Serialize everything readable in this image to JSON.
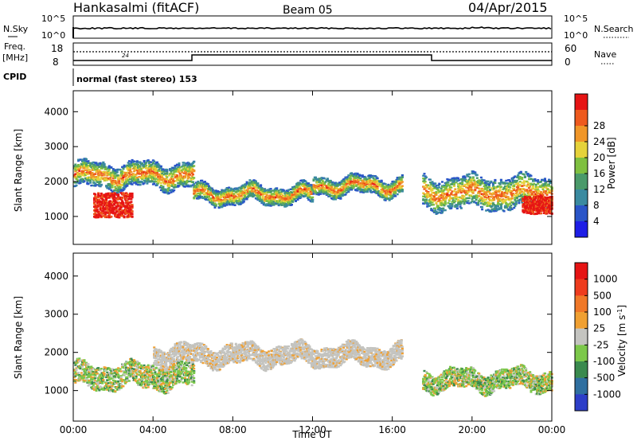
{
  "header": {
    "station": "Hankasalmi (fitACF)",
    "beam": "Beam 05",
    "date": "04/Apr/2015"
  },
  "noise_panel": {
    "left_label": "N.Sky",
    "right_label": "N.Search",
    "tick_high": "10^5",
    "tick_low": "10^0"
  },
  "freq_panel": {
    "left_label_line1": "Freq.",
    "left_label_line2": "[MHz]",
    "left_ticks": [
      "8",
      "18"
    ],
    "right_ticks": [
      "0",
      "60"
    ],
    "right_label": "Nave",
    "nave_annotation": "24"
  },
  "cpid": {
    "label": "CPID",
    "text": "normal (fast stereo) 153"
  },
  "chart_data": [
    {
      "type": "heatmap",
      "title": "",
      "ylabel": "Slant Range [km]",
      "ylim": [
        200,
        4600
      ],
      "yticks": [
        "1000",
        "2000",
        "3000",
        "4000"
      ],
      "xlim": [
        "00:00",
        "24:00"
      ],
      "colorbar": {
        "label": "Power [dB]",
        "ticks": [
          "4",
          "8",
          "12",
          "16",
          "20",
          "24",
          "28"
        ],
        "colors": [
          "#1e1ee6",
          "#2a55c8",
          "#3a8aa0",
          "#4a9a6a",
          "#7fc040",
          "#e6d23a",
          "#f09628",
          "#ee5a1e",
          "#e61414"
        ]
      },
      "echo_bands": [
        {
          "x_start": 0.0,
          "x_end": 6.0,
          "range_center": 2200,
          "range_width": 700,
          "dominant": "mixed"
        },
        {
          "x_start": 6.0,
          "x_end": 12.0,
          "range_center": 1650,
          "range_width": 500,
          "dominant": "orange"
        },
        {
          "x_start": 12.0,
          "x_end": 16.5,
          "range_center": 1900,
          "range_width": 500,
          "dominant": "yellow"
        },
        {
          "x_start": 17.5,
          "x_end": 24.0,
          "range_center": 1700,
          "range_width": 900,
          "dominant": "orange"
        }
      ],
      "strong_patches": [
        {
          "x_start": 1.0,
          "x_end": 2.9,
          "range_low": 1000,
          "range_high": 1700,
          "power_db": 28
        },
        {
          "x_start": 22.5,
          "x_end": 24.0,
          "range_low": 1100,
          "range_high": 1600,
          "power_db": 28
        }
      ]
    },
    {
      "type": "heatmap",
      "title": "",
      "ylabel": "Slant Range [km]",
      "ylim": [
        200,
        4600
      ],
      "yticks": [
        "1000",
        "2000",
        "3000",
        "4000"
      ],
      "xlabel": "Time UT",
      "xticks": [
        "00:00",
        "04:00",
        "08:00",
        "12:00",
        "16:00",
        "20:00",
        "00:00"
      ],
      "colorbar": {
        "label_main": "Velocity",
        "label_unit": "[m s",
        "label_sup": "-1",
        "ticks": [
          "1000",
          "500",
          "100",
          "25",
          "-25",
          "-100",
          "-500",
          "-1000"
        ],
        "colors": [
          "#2d3ec8",
          "#2f6fa0",
          "#3a8a4e",
          "#7cc84a",
          "#c4c4c0",
          "#f0a032",
          "#f07828",
          "#ee3c1e",
          "#e61414"
        ]
      },
      "echo_bands": [
        {
          "x_start": 0.0,
          "x_end": 6.0,
          "range_center": 1400,
          "range_width": 600,
          "dominant": "green"
        },
        {
          "x_start": 4.0,
          "x_end": 16.5,
          "range_center": 1950,
          "range_width": 500,
          "dominant": "grey"
        },
        {
          "x_start": 17.5,
          "x_end": 24.0,
          "range_center": 1300,
          "range_width": 500,
          "dominant": "green"
        }
      ]
    }
  ]
}
